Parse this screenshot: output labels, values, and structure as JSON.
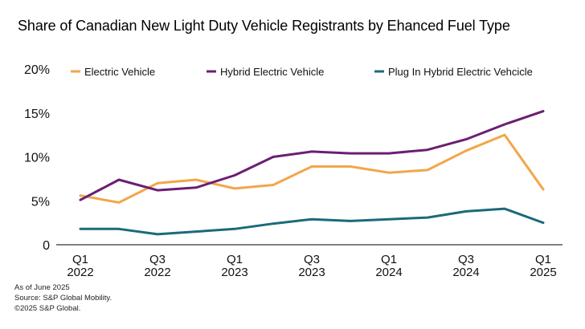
{
  "chart_data": {
    "type": "line",
    "title": "Share of Canadian New Light Duty Vehicle Registrants by Ehanced Fuel Type",
    "xlabel": "",
    "ylabel": "",
    "categories": [
      "Q1 2022",
      "Q2 2022",
      "Q3 2022",
      "Q4 2022",
      "Q1 2023",
      "Q2 2023",
      "Q3 2023",
      "Q4 2023",
      "Q1 2024",
      "Q2 2024",
      "Q3 2024",
      "Q4 2024",
      "Q1 2025"
    ],
    "x_tick_labels": [
      {
        "index": 0,
        "line1": "Q1",
        "line2": "2022"
      },
      {
        "index": 2,
        "line1": "Q3",
        "line2": "2022"
      },
      {
        "index": 4,
        "line1": "Q1",
        "line2": "2023"
      },
      {
        "index": 6,
        "line1": "Q3",
        "line2": "2023"
      },
      {
        "index": 8,
        "line1": "Q1",
        "line2": "2024"
      },
      {
        "index": 10,
        "line1": "Q3",
        "line2": "2024"
      },
      {
        "index": 12,
        "line1": "Q1",
        "line2": "2025"
      }
    ],
    "ylim": [
      0,
      20
    ],
    "y_ticks": [
      {
        "value": 0,
        "label": "0"
      },
      {
        "value": 5,
        "label": "5%"
      },
      {
        "value": 10,
        "label": "10%"
      },
      {
        "value": 15,
        "label": "15%"
      },
      {
        "value": 20,
        "label": "20%"
      }
    ],
    "grid": false,
    "legend_position": "top",
    "series": [
      {
        "name": "Electric Vehicle",
        "color": "#F2A64A",
        "values": [
          5.6,
          4.8,
          7.0,
          7.4,
          6.4,
          6.8,
          8.9,
          8.9,
          8.2,
          8.5,
          10.7,
          12.5,
          6.3
        ]
      },
      {
        "name": "Hybrid Electric Vehicle",
        "color": "#6B1E73",
        "values": [
          5.1,
          7.4,
          6.2,
          6.5,
          7.9,
          10.0,
          10.6,
          10.4,
          10.4,
          10.8,
          12.0,
          13.7,
          15.2
        ]
      },
      {
        "name": "Plug In Hybrid Electric Vehcicle",
        "color": "#1A6A7A",
        "values": [
          1.8,
          1.8,
          1.2,
          1.5,
          1.8,
          2.4,
          2.9,
          2.7,
          2.9,
          3.1,
          3.8,
          4.1,
          2.5
        ]
      }
    ]
  },
  "footnotes": {
    "line1": "As of June 2025",
    "line2": "Source: S&P Global Mobility.",
    "line3": "©2025 S&P Global."
  }
}
